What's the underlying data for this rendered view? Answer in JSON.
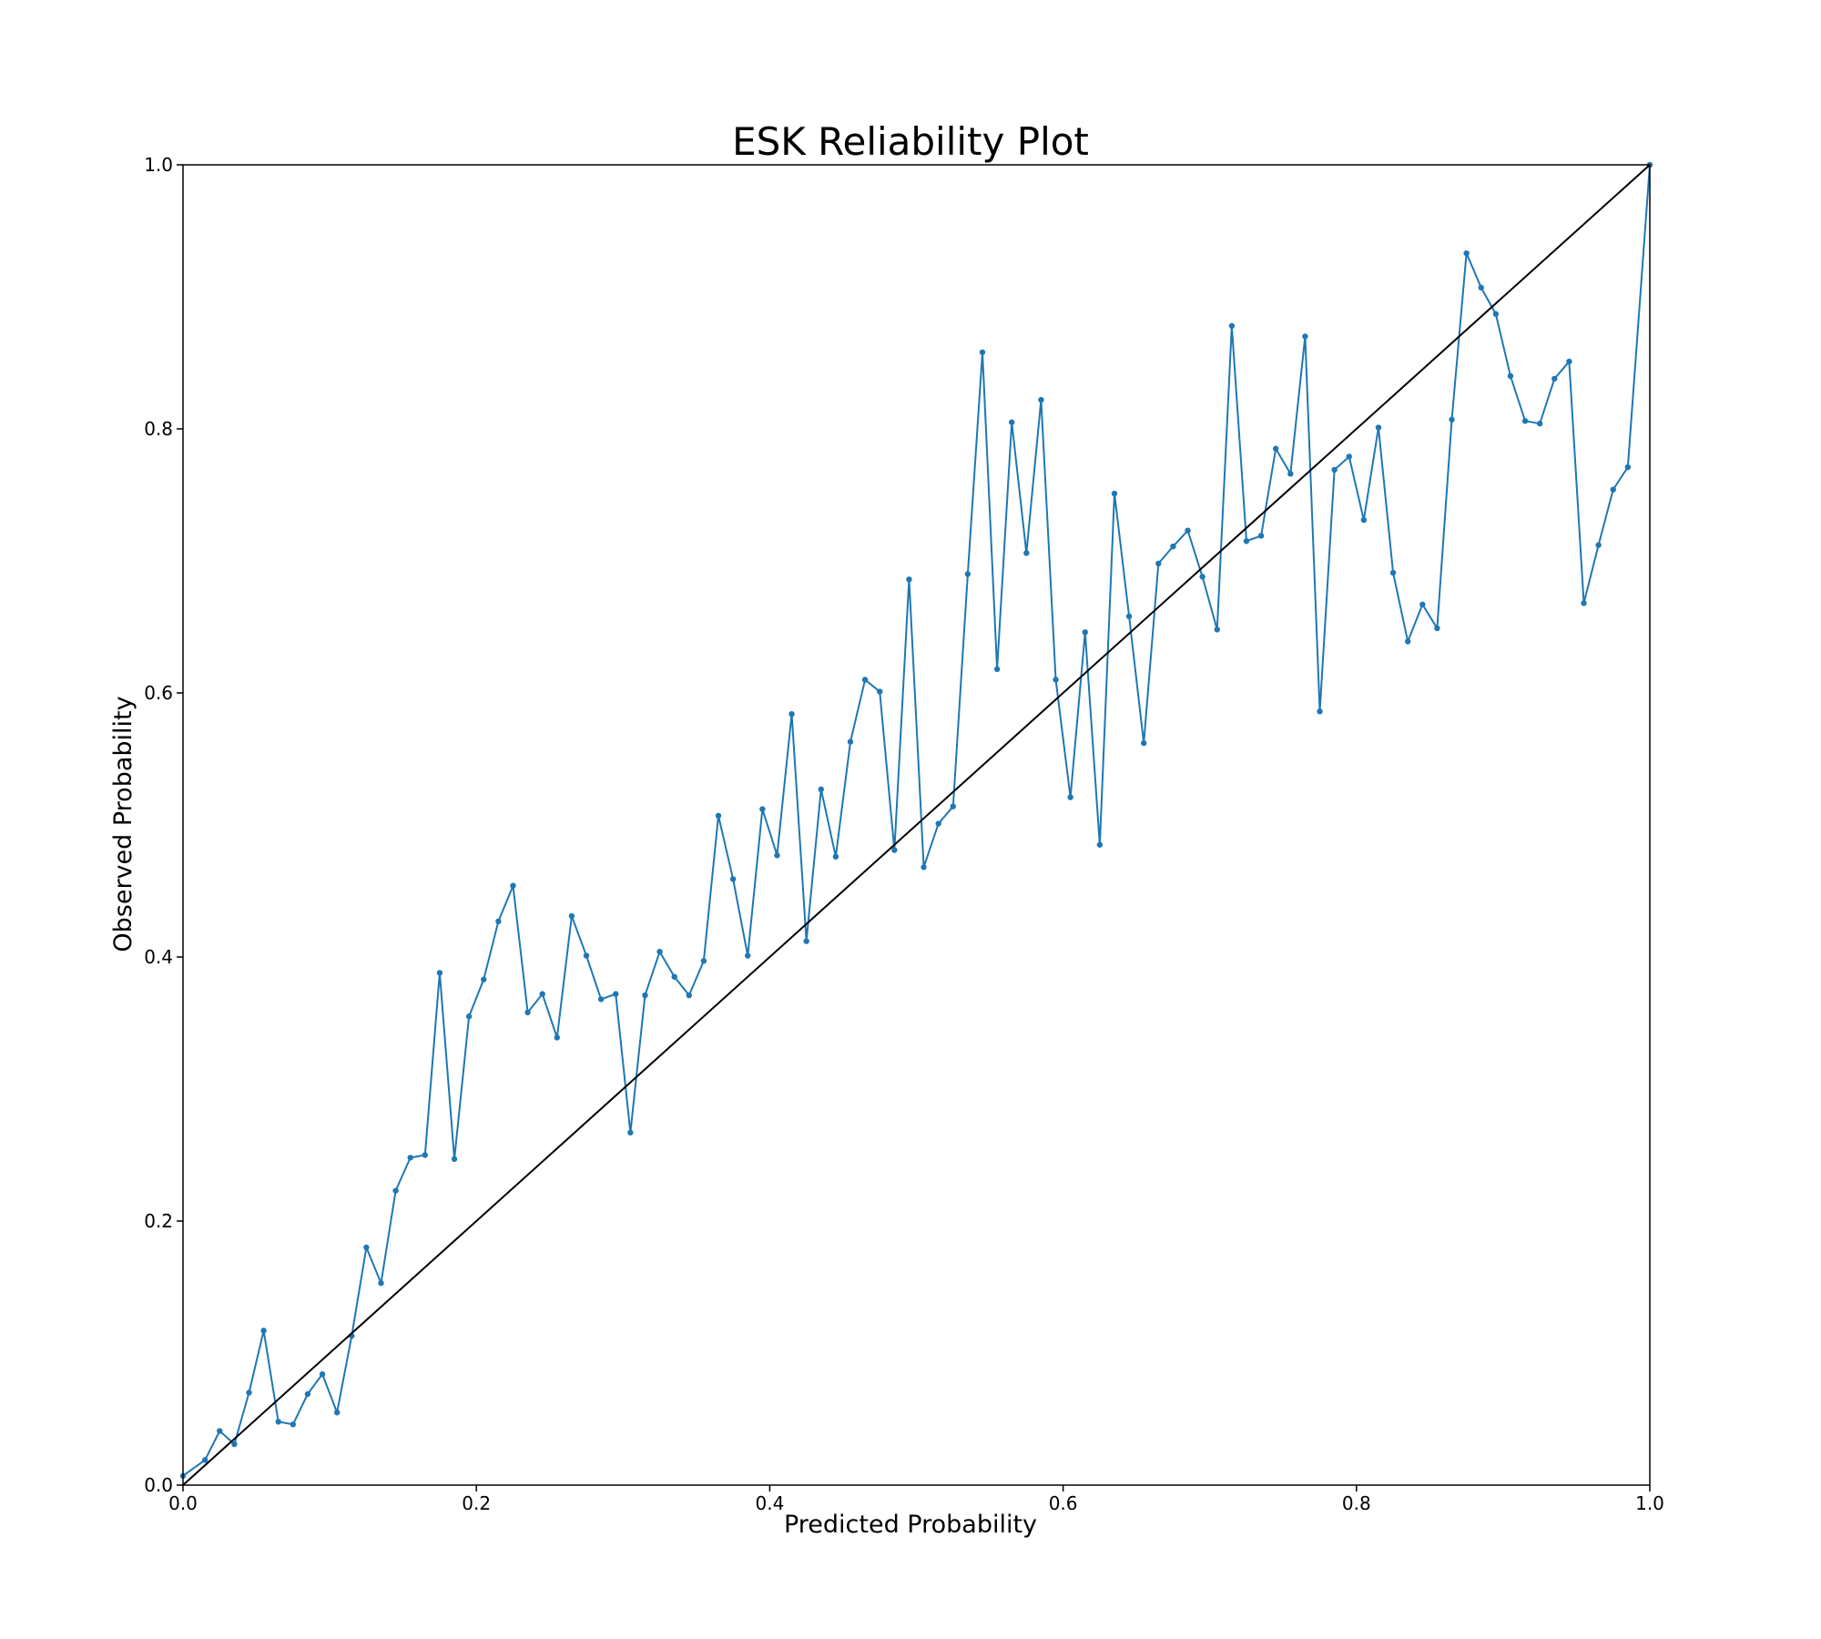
{
  "chart_data": {
    "type": "line",
    "title": "ESK Reliability Plot",
    "xlabel": "Predicted Probability",
    "ylabel": "Observed Probability",
    "xlim": [
      0.0,
      1.0
    ],
    "ylim": [
      0.0,
      1.0
    ],
    "xticks": [
      "0.0",
      "0.2",
      "0.4",
      "0.6",
      "0.8",
      "1.0"
    ],
    "yticks": [
      "0.0",
      "0.2",
      "0.4",
      "0.6",
      "0.8",
      "1.0"
    ],
    "grid": false,
    "legend": "none",
    "series": [
      {
        "color": "#1f77b4",
        "marker": "dot",
        "points": [
          [
            0.0,
            0.007
          ],
          [
            0.015,
            0.019
          ],
          [
            0.025,
            0.041
          ],
          [
            0.035,
            0.031
          ],
          [
            0.045,
            0.07
          ],
          [
            0.055,
            0.117
          ],
          [
            0.065,
            0.048
          ],
          [
            0.075,
            0.046
          ],
          [
            0.085,
            0.069
          ],
          [
            0.095,
            0.084
          ],
          [
            0.105,
            0.055
          ],
          [
            0.115,
            0.113
          ],
          [
            0.125,
            0.18
          ],
          [
            0.135,
            0.153
          ],
          [
            0.145,
            0.223
          ],
          [
            0.155,
            0.248
          ],
          [
            0.165,
            0.25
          ],
          [
            0.175,
            0.388
          ],
          [
            0.185,
            0.247
          ],
          [
            0.195,
            0.355
          ],
          [
            0.205,
            0.383
          ],
          [
            0.215,
            0.427
          ],
          [
            0.225,
            0.454
          ],
          [
            0.235,
            0.358
          ],
          [
            0.245,
            0.372
          ],
          [
            0.255,
            0.339
          ],
          [
            0.265,
            0.431
          ],
          [
            0.275,
            0.401
          ],
          [
            0.285,
            0.368
          ],
          [
            0.295,
            0.372
          ],
          [
            0.305,
            0.267
          ],
          [
            0.315,
            0.371
          ],
          [
            0.325,
            0.404
          ],
          [
            0.335,
            0.385
          ],
          [
            0.345,
            0.371
          ],
          [
            0.355,
            0.397
          ],
          [
            0.365,
            0.507
          ],
          [
            0.375,
            0.459
          ],
          [
            0.385,
            0.401
          ],
          [
            0.395,
            0.512
          ],
          [
            0.405,
            0.477
          ],
          [
            0.415,
            0.584
          ],
          [
            0.425,
            0.412
          ],
          [
            0.435,
            0.527
          ],
          [
            0.445,
            0.476
          ],
          [
            0.455,
            0.563
          ],
          [
            0.465,
            0.61
          ],
          [
            0.475,
            0.601
          ],
          [
            0.485,
            0.481
          ],
          [
            0.495,
            0.686
          ],
          [
            0.505,
            0.468
          ],
          [
            0.515,
            0.501
          ],
          [
            0.525,
            0.514
          ],
          [
            0.535,
            0.69
          ],
          [
            0.545,
            0.858
          ],
          [
            0.555,
            0.618
          ],
          [
            0.565,
            0.805
          ],
          [
            0.575,
            0.706
          ],
          [
            0.585,
            0.822
          ],
          [
            0.595,
            0.61
          ],
          [
            0.605,
            0.521
          ],
          [
            0.615,
            0.646
          ],
          [
            0.625,
            0.485
          ],
          [
            0.635,
            0.751
          ],
          [
            0.645,
            0.658
          ],
          [
            0.655,
            0.562
          ],
          [
            0.665,
            0.698
          ],
          [
            0.675,
            0.711
          ],
          [
            0.685,
            0.723
          ],
          [
            0.695,
            0.688
          ],
          [
            0.705,
            0.648
          ],
          [
            0.715,
            0.878
          ],
          [
            0.725,
            0.715
          ],
          [
            0.735,
            0.719
          ],
          [
            0.745,
            0.785
          ],
          [
            0.755,
            0.766
          ],
          [
            0.765,
            0.87
          ],
          [
            0.775,
            0.586
          ],
          [
            0.785,
            0.769
          ],
          [
            0.795,
            0.779
          ],
          [
            0.805,
            0.731
          ],
          [
            0.815,
            0.801
          ],
          [
            0.825,
            0.691
          ],
          [
            0.835,
            0.639
          ],
          [
            0.845,
            0.667
          ],
          [
            0.855,
            0.649
          ],
          [
            0.865,
            0.807
          ],
          [
            0.875,
            0.933
          ],
          [
            0.885,
            0.907
          ],
          [
            0.895,
            0.887
          ],
          [
            0.905,
            0.84
          ],
          [
            0.915,
            0.806
          ],
          [
            0.925,
            0.804
          ],
          [
            0.935,
            0.838
          ],
          [
            0.945,
            0.851
          ],
          [
            0.955,
            0.668
          ],
          [
            0.965,
            0.712
          ],
          [
            0.975,
            0.754
          ],
          [
            0.985,
            0.771
          ],
          [
            1.0,
            1.0
          ]
        ]
      },
      {
        "color": "#000000",
        "marker": "none",
        "points": [
          [
            0.0,
            0.0
          ],
          [
            1.0,
            1.0
          ]
        ]
      }
    ]
  }
}
